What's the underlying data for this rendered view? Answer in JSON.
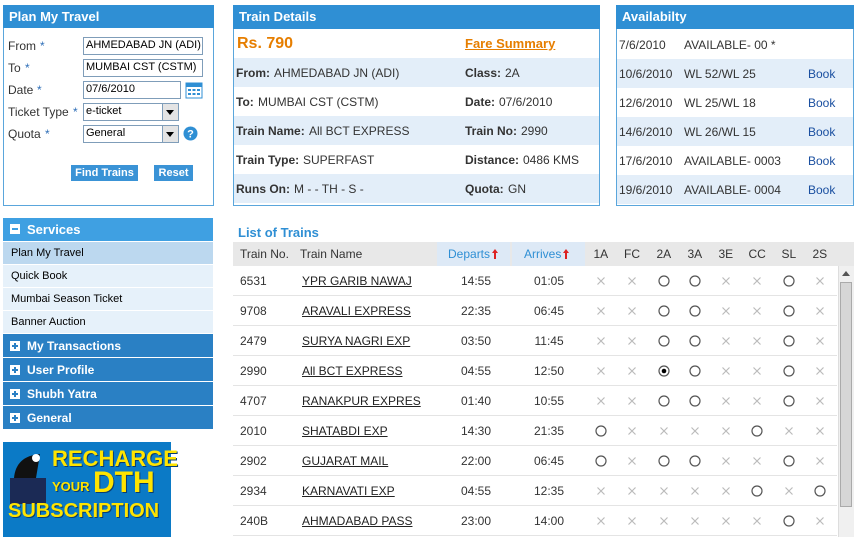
{
  "plan": {
    "title": "Plan My Travel",
    "fields": [
      {
        "label": "From",
        "required": "*",
        "value": "AHMEDABAD JN (ADI)"
      },
      {
        "label": "To",
        "required": "*",
        "value": "MUMBAI CST (CSTM)"
      },
      {
        "label": "Date",
        "required": "*",
        "value": "07/6/2010"
      },
      {
        "label": "Ticket Type",
        "required": "*",
        "value": "e-ticket"
      },
      {
        "label": "Quota",
        "required": "*",
        "value": "General"
      }
    ],
    "buttons": [
      "Find Trains",
      "Reset"
    ]
  },
  "details": {
    "title": "Train Details",
    "fare": "Rs. 790",
    "fare_link": "Fare Summary",
    "rows": [
      [
        {
          "label": "From:",
          "value": "AHMEDABAD JN (ADI)"
        },
        {
          "label": "Class:",
          "value": "2A"
        }
      ],
      [
        {
          "label": "To:",
          "value": "MUMBAI CST (CSTM)"
        },
        {
          "label": "Date:",
          "value": "07/6/2010"
        }
      ],
      [
        {
          "label": "Train Name:",
          "value": "All BCT EXPRESS"
        },
        {
          "label": "Train No:",
          "value": "2990"
        }
      ],
      [
        {
          "label": "Train Type:",
          "value": "SUPERFAST"
        },
        {
          "label": "Distance:",
          "value": "0486 KMS"
        }
      ],
      [
        {
          "label": "Runs On:",
          "value": "M - - TH - S -"
        },
        {
          "label": "Quota:",
          "value": "GN"
        }
      ]
    ]
  },
  "availability": {
    "title": "Availabilty",
    "rows": [
      {
        "date": "7/6/2010",
        "status": "AVAILABLE- 00 *"
      },
      {
        "date": "10/6/2010",
        "status": "WL 52/WL 25",
        "link": "Book"
      },
      {
        "date": "12/6/2010",
        "status": "WL 25/WL 18",
        "link": "Book"
      },
      {
        "date": "14/6/2010",
        "status": "WL 26/WL 15",
        "link": "Book"
      },
      {
        "date": "17/6/2010",
        "status": "AVAILABLE- 0003",
        "link": "Book"
      },
      {
        "date": "19/6/2010",
        "status": "AVAILABLE- 0004",
        "link": "Book"
      }
    ]
  },
  "menu": {
    "title": "Services",
    "items": [
      "Plan My Travel",
      "Quick Book",
      "Mumbai Season Ticket",
      "Banner Auction"
    ],
    "sections": [
      "My Transactions",
      "User Profile",
      "Shubh Yatra",
      "General"
    ]
  },
  "banner": {
    "lines": [
      "RECHARGE",
      "YOUR",
      "DTH",
      "SUBSCRIPTION"
    ]
  },
  "trains": {
    "title": "List of Trains",
    "columns": [
      "Train No.",
      "Train Name",
      "Departs",
      "Arrives"
    ],
    "classes": [
      "1A",
      "FC",
      "2A",
      "3A",
      "3E",
      "CC",
      "SL",
      "2S"
    ],
    "selected": {
      "train": "2990",
      "class": "2A"
    },
    "rows": [
      {
        "no": "6531",
        "name": "YPR GARIB NAWAJ",
        "departs": "14:55",
        "arrives": "01:05",
        "available": [
          false,
          false,
          true,
          true,
          false,
          false,
          true,
          false
        ]
      },
      {
        "no": "9708",
        "name": "ARAVALI EXPRESS",
        "departs": "22:35",
        "arrives": "06:45",
        "available": [
          false,
          false,
          true,
          true,
          false,
          false,
          true,
          false
        ]
      },
      {
        "no": "2479",
        "name": "SURYA NAGRI EXP",
        "departs": "03:50",
        "arrives": "11:45",
        "available": [
          false,
          false,
          true,
          true,
          false,
          false,
          true,
          false
        ]
      },
      {
        "no": "2990",
        "name": "All BCT EXPRESS",
        "departs": "04:55",
        "arrives": "12:50",
        "available": [
          false,
          false,
          true,
          true,
          false,
          false,
          true,
          false
        ]
      },
      {
        "no": "4707",
        "name": "RANAKPUR EXPRES",
        "departs": "01:40",
        "arrives": "10:55",
        "available": [
          false,
          false,
          true,
          true,
          false,
          false,
          true,
          false
        ]
      },
      {
        "no": "2010",
        "name": "SHATABDI EXP",
        "departs": "14:30",
        "arrives": "21:35",
        "available": [
          true,
          false,
          false,
          false,
          false,
          true,
          false,
          false
        ]
      },
      {
        "no": "2902",
        "name": "GUJARAT MAIL",
        "departs": "22:00",
        "arrives": "06:45",
        "available": [
          true,
          false,
          true,
          true,
          false,
          false,
          true,
          false
        ]
      },
      {
        "no": "2934",
        "name": "KARNAVATI EXP",
        "departs": "04:55",
        "arrives": "12:35",
        "available": [
          false,
          false,
          false,
          false,
          false,
          true,
          false,
          true
        ]
      },
      {
        "no": "240B",
        "name": "AHMADABAD PASS",
        "departs": "23:00",
        "arrives": "14:00",
        "available": [
          false,
          false,
          false,
          false,
          false,
          false,
          true,
          false
        ]
      }
    ]
  }
}
